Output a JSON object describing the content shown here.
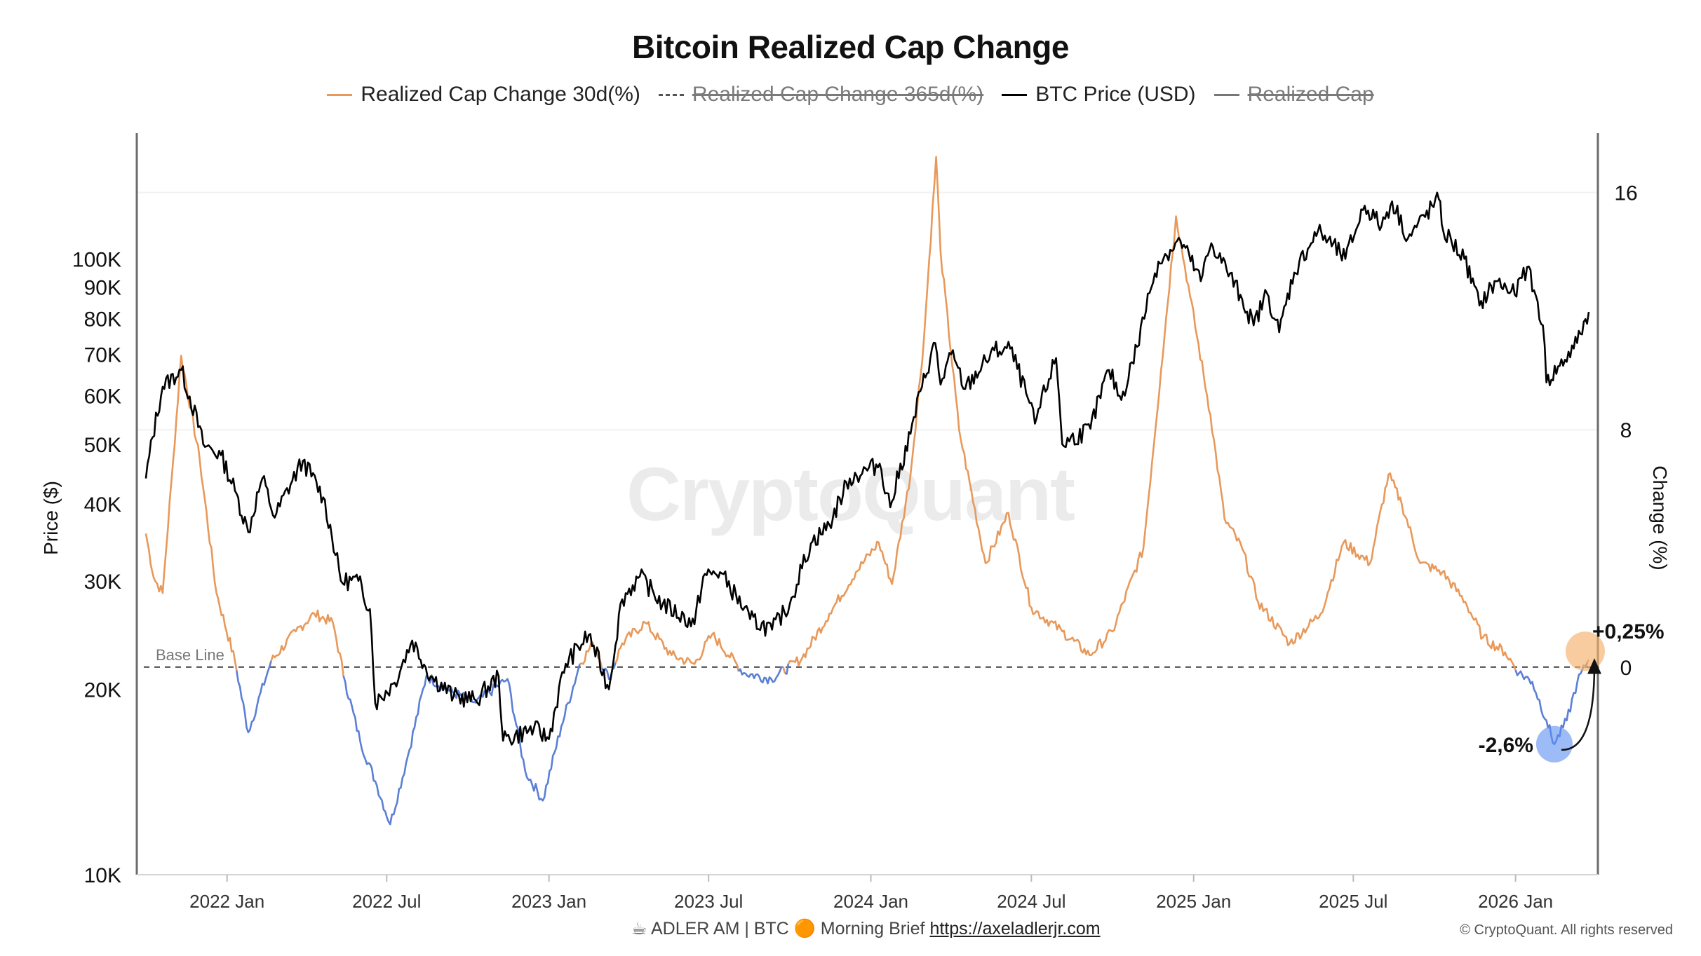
{
  "title": "Bitcoin Realized Cap Change",
  "legend": [
    {
      "label": "Realized Cap Change 30d(%)",
      "color": "#e8995a",
      "style": "solid",
      "disabled": false
    },
    {
      "label": "Realized Cap Change 365d(%)",
      "color": "#555555",
      "style": "dashed",
      "disabled": true
    },
    {
      "label": "BTC Price (USD)",
      "color": "#000000",
      "style": "solid",
      "disabled": false
    },
    {
      "label": "Realized Cap",
      "color": "#777777",
      "style": "solid",
      "disabled": true
    }
  ],
  "watermark": "CryptoQuant",
  "footer": {
    "text": "☕ ADLER AM | BTC 🟠 Morning Brief ",
    "link": "https://axeladlerjr.com"
  },
  "copyright": "© CryptoQuant. All rights reserved",
  "chart_data": {
    "type": "line",
    "x_ticks": [
      "2022 Jan",
      "2022 Jul",
      "2023 Jan",
      "2023 Jul",
      "2024 Jan",
      "2024 Jul",
      "2025 Jan",
      "2025 Jul",
      "2026 Jan"
    ],
    "x_range": [
      "2021-10-01",
      "2026-03-25"
    ],
    "left_axis": {
      "label": "Price ($)",
      "scale": "log",
      "range": [
        10000,
        160000
      ],
      "ticks": [
        {
          "v": 10000,
          "t": "10K"
        },
        {
          "v": 20000,
          "t": "20K"
        },
        {
          "v": 30000,
          "t": "30K"
        },
        {
          "v": 40000,
          "t": "40K"
        },
        {
          "v": 50000,
          "t": "50K"
        },
        {
          "v": 60000,
          "t": "60K"
        },
        {
          "v": 70000,
          "t": "70K"
        },
        {
          "v": 80000,
          "t": "80K"
        },
        {
          "v": 90000,
          "t": "90K"
        },
        {
          "v": 100000,
          "t": "100K"
        }
      ]
    },
    "right_axis": {
      "label": "Change (%)",
      "range": [
        -7,
        18
      ],
      "ticks": [
        {
          "v": 0,
          "t": "0"
        },
        {
          "v": 8,
          "t": "8"
        },
        {
          "v": 16,
          "t": "16"
        }
      ]
    },
    "base_line": {
      "label": "Base Line",
      "value": 0
    },
    "colors": {
      "positive": "#e8995a",
      "negative": "#5b7fd6",
      "price": "#000000"
    },
    "series": [
      {
        "name": "BTC Price (USD)",
        "axis": "left",
        "points": [
          [
            "2021-10-01",
            44000
          ],
          [
            "2021-10-20",
            62000
          ],
          [
            "2021-11-10",
            66000
          ],
          [
            "2021-12-05",
            50000
          ],
          [
            "2021-12-25",
            48000
          ],
          [
            "2022-01-10",
            42000
          ],
          [
            "2022-01-25",
            36000
          ],
          [
            "2022-02-10",
            44000
          ],
          [
            "2022-02-24",
            38000
          ],
          [
            "2022-03-28",
            47000
          ],
          [
            "2022-04-20",
            41000
          ],
          [
            "2022-05-10",
            30000
          ],
          [
            "2022-05-30",
            30000
          ],
          [
            "2022-06-12",
            27000
          ],
          [
            "2022-06-18",
            19000
          ],
          [
            "2022-07-10",
            20500
          ],
          [
            "2022-07-30",
            24000
          ],
          [
            "2022-08-20",
            21000
          ],
          [
            "2022-09-15",
            19500
          ],
          [
            "2022-10-10",
            19200
          ],
          [
            "2022-11-05",
            21000
          ],
          [
            "2022-11-10",
            16500
          ],
          [
            "2022-12-15",
            17300
          ],
          [
            "2023-01-01",
            16600
          ],
          [
            "2023-01-20",
            22000
          ],
          [
            "2023-02-15",
            24500
          ],
          [
            "2023-03-10",
            20000
          ],
          [
            "2023-03-25",
            28000
          ],
          [
            "2023-04-14",
            30500
          ],
          [
            "2023-05-10",
            27500
          ],
          [
            "2023-06-15",
            25500
          ],
          [
            "2023-06-25",
            30500
          ],
          [
            "2023-07-14",
            31000
          ],
          [
            "2023-08-17",
            26000
          ],
          [
            "2023-09-11",
            25000
          ],
          [
            "2023-10-01",
            27500
          ],
          [
            "2023-10-25",
            34500
          ],
          [
            "2023-11-15",
            37000
          ],
          [
            "2023-12-08",
            44000
          ],
          [
            "2024-01-11",
            46500
          ],
          [
            "2024-01-23",
            39500
          ],
          [
            "2024-02-15",
            52000
          ],
          [
            "2024-02-28",
            62000
          ],
          [
            "2024-03-14",
            73000
          ],
          [
            "2024-03-20",
            62500
          ],
          [
            "2024-04-01",
            70000
          ],
          [
            "2024-04-17",
            61500
          ],
          [
            "2024-05-20",
            71000
          ],
          [
            "2024-06-07",
            71500
          ],
          [
            "2024-07-05",
            54000
          ],
          [
            "2024-07-29",
            69000
          ],
          [
            "2024-08-05",
            50000
          ],
          [
            "2024-09-06",
            53000
          ],
          [
            "2024-09-27",
            66000
          ],
          [
            "2024-10-11",
            59000
          ],
          [
            "2024-10-29",
            72000
          ],
          [
            "2024-11-12",
            88000
          ],
          [
            "2024-11-22",
            99000
          ],
          [
            "2024-12-17",
            107000
          ],
          [
            "2025-01-09",
            92000
          ],
          [
            "2025-01-21",
            106000
          ],
          [
            "2025-02-25",
            86000
          ],
          [
            "2025-03-10",
            78000
          ],
          [
            "2025-03-25",
            88000
          ],
          [
            "2025-04-08",
            76000
          ],
          [
            "2025-04-25",
            95000
          ],
          [
            "2025-05-22",
            111000
          ],
          [
            "2025-06-22",
            100000
          ],
          [
            "2025-07-14",
            122000
          ],
          [
            "2025-08-02",
            113000
          ],
          [
            "2025-08-14",
            124000
          ],
          [
            "2025-09-01",
            108000
          ],
          [
            "2025-10-06",
            125000
          ],
          [
            "2025-10-11",
            111000
          ],
          [
            "2025-11-04",
            100000
          ],
          [
            "2025-11-21",
            84000
          ],
          [
            "2025-12-10",
            92000
          ],
          [
            "2025-12-31",
            87500
          ],
          [
            "2026-01-14",
            97000
          ],
          [
            "2026-02-01",
            78000
          ],
          [
            "2026-02-05",
            63000
          ],
          [
            "2026-02-20",
            67000
          ],
          [
            "2026-03-08",
            71500
          ],
          [
            "2026-03-25",
            82000
          ]
        ]
      },
      {
        "name": "Realized Cap Change 30d(%)",
        "axis": "right",
        "points": [
          [
            "2021-10-01",
            4.5
          ],
          [
            "2021-10-10",
            3.0
          ],
          [
            "2021-10-20",
            2.5
          ],
          [
            "2021-11-01",
            7.0
          ],
          [
            "2021-11-10",
            10.5
          ],
          [
            "2021-12-01",
            7.0
          ],
          [
            "2021-12-20",
            2.5
          ],
          [
            "2022-01-10",
            0.2
          ],
          [
            "2022-01-25",
            -2.2
          ],
          [
            "2022-02-20",
            0.2
          ],
          [
            "2022-03-20",
            1.2
          ],
          [
            "2022-04-10",
            1.8
          ],
          [
            "2022-05-01",
            1.5
          ],
          [
            "2022-05-15",
            -0.5
          ],
          [
            "2022-06-01",
            -2.5
          ],
          [
            "2022-06-20",
            -4.0
          ],
          [
            "2022-07-05",
            -5.3
          ],
          [
            "2022-07-25",
            -3.0
          ],
          [
            "2022-08-15",
            -0.3
          ],
          [
            "2022-09-10",
            -0.8
          ],
          [
            "2022-10-10",
            -1.2
          ],
          [
            "2022-11-15",
            -0.4
          ],
          [
            "2022-12-05",
            -3.5
          ],
          [
            "2022-12-25",
            -4.5
          ],
          [
            "2023-01-15",
            -2.0
          ],
          [
            "2023-02-05",
            0.1
          ],
          [
            "2023-02-20",
            0.8
          ],
          [
            "2023-03-10",
            -0.4
          ],
          [
            "2023-03-25",
            0.8
          ],
          [
            "2023-04-20",
            1.5
          ],
          [
            "2023-05-20",
            0.4
          ],
          [
            "2023-06-15",
            0.1
          ],
          [
            "2023-07-05",
            1.1
          ],
          [
            "2023-08-10",
            -0.2
          ],
          [
            "2023-09-10",
            -0.4
          ],
          [
            "2023-10-15",
            0.3
          ],
          [
            "2023-11-15",
            1.8
          ],
          [
            "2023-12-15",
            3.2
          ],
          [
            "2024-01-10",
            4.2
          ],
          [
            "2024-01-25",
            2.8
          ],
          [
            "2024-02-15",
            6.5
          ],
          [
            "2024-03-01",
            11.0
          ],
          [
            "2024-03-15",
            17.2
          ],
          [
            "2024-03-20",
            14.0
          ],
          [
            "2024-04-10",
            8.0
          ],
          [
            "2024-05-10",
            3.5
          ],
          [
            "2024-06-05",
            5.2
          ],
          [
            "2024-07-01",
            2.0
          ],
          [
            "2024-08-05",
            1.2
          ],
          [
            "2024-09-05",
            0.4
          ],
          [
            "2024-10-01",
            1.2
          ],
          [
            "2024-11-05",
            4.0
          ],
          [
            "2024-11-25",
            10.0
          ],
          [
            "2024-12-12",
            15.2
          ],
          [
            "2024-12-28",
            12.5
          ],
          [
            "2025-01-20",
            8.5
          ],
          [
            "2025-02-05",
            5.0
          ],
          [
            "2025-02-25",
            4.0
          ],
          [
            "2025-03-15",
            2.2
          ],
          [
            "2025-04-20",
            0.8
          ],
          [
            "2025-05-25",
            1.8
          ],
          [
            "2025-06-20",
            4.2
          ],
          [
            "2025-07-20",
            3.5
          ],
          [
            "2025-08-10",
            6.5
          ],
          [
            "2025-08-25",
            5.5
          ],
          [
            "2025-09-15",
            3.5
          ],
          [
            "2025-10-10",
            3.2
          ],
          [
            "2025-11-05",
            2.2
          ],
          [
            "2025-11-25",
            1.0
          ],
          [
            "2025-12-20",
            0.5
          ],
          [
            "2026-01-05",
            -0.2
          ],
          [
            "2026-01-20",
            -0.5
          ],
          [
            "2026-02-05",
            -1.8
          ],
          [
            "2026-02-14",
            -2.6
          ],
          [
            "2026-02-28",
            -1.8
          ],
          [
            "2026-03-12",
            -0.5
          ],
          [
            "2026-03-25",
            0.25
          ]
        ]
      }
    ],
    "annotations": [
      {
        "text": "-2,6%",
        "x": "2026-02-14",
        "y": -2.6
      },
      {
        "text": "+0,25%",
        "x": "2026-03-25",
        "y": 0.25
      }
    ]
  }
}
